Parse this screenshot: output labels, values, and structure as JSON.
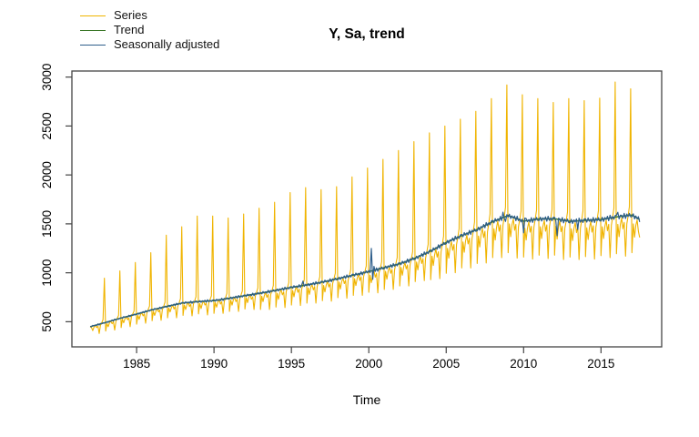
{
  "title": "Y, Sa, trend",
  "chart_data": {
    "type": "line",
    "title": "Y, Sa, trend",
    "xlabel": "Time",
    "ylabel": "",
    "grid": false,
    "legend_position": "top-left-above-plot",
    "frequency": "monthly",
    "x_ticks": [
      1985,
      1990,
      1995,
      2000,
      2005,
      2010,
      2015
    ],
    "y_ticks": [
      500,
      1000,
      1500,
      2000,
      2500,
      3000
    ],
    "x_range": [
      1980.82,
      2018.92
    ],
    "y_range": [
      243,
      3062
    ],
    "legend": [
      {
        "name": "Series",
        "color": "#F0B400"
      },
      {
        "name": "Trend",
        "color": "#3A7728"
      },
      {
        "name": "Seasonally adjusted",
        "color": "#2E5E8A"
      }
    ],
    "axis_color": "#444444",
    "trend": {
      "start_year": 1982,
      "annual_january_values": [
        450,
        492,
        538,
        578,
        622,
        658,
        692,
        706,
        716,
        740,
        766,
        792,
        821,
        851,
        876,
        905,
        940,
        976,
        1012,
        1052,
        1092,
        1150,
        1222,
        1310,
        1380,
        1442,
        1522,
        1585,
        1528,
        1550,
        1552,
        1526,
        1536,
        1545,
        1572,
        1590
      ],
      "end_point": {
        "time": 2017.5,
        "value": 1545
      }
    },
    "monthly": [
      {
        "year": 1982,
        "series": [
          450,
          440,
          410,
          445,
          465,
          440,
          455,
          380,
          465,
          490,
          520,
          945
        ],
        "sa_dev": [
          3,
          -5,
          6,
          -3,
          2,
          -6,
          7,
          -8,
          4,
          -2,
          5,
          -3
        ]
      },
      {
        "year": 1983,
        "series": [
          405,
          480,
          450,
          490,
          505,
          480,
          500,
          415,
          505,
          535,
          565,
          1020
        ],
        "sa_dev": [
          -4,
          5,
          -6,
          3,
          -2,
          6,
          -7,
          8,
          -4,
          2,
          -5,
          3
        ]
      },
      {
        "year": 1984,
        "series": [
          440,
          525,
          490,
          530,
          550,
          520,
          540,
          450,
          550,
          580,
          610,
          1105
        ],
        "sa_dev": [
          4,
          -6,
          7,
          -3,
          2,
          -7,
          8,
          -9,
          5,
          -3,
          6,
          -4
        ]
      },
      {
        "year": 1985,
        "series": [
          475,
          565,
          525,
          570,
          595,
          560,
          580,
          485,
          590,
          625,
          660,
          1205
        ],
        "sa_dev": [
          -5,
          6,
          -7,
          4,
          -2,
          7,
          -8,
          9,
          -5,
          3,
          -6,
          4
        ]
      },
      {
        "year": 1986,
        "series": [
          510,
          605,
          565,
          610,
          635,
          600,
          620,
          515,
          625,
          660,
          700,
          1385
        ],
        "sa_dev": [
          5,
          -7,
          8,
          -4,
          3,
          -8,
          9,
          -10,
          5,
          -3,
          7,
          -5
        ]
      },
      {
        "year": 1987,
        "series": [
          540,
          640,
          600,
          645,
          670,
          630,
          655,
          540,
          660,
          695,
          735,
          1470
        ],
        "sa_dev": [
          -6,
          7,
          -9,
          5,
          -3,
          8,
          -10,
          11,
          -6,
          4,
          -7,
          5
        ]
      },
      {
        "year": 1988,
        "series": [
          565,
          670,
          625,
          675,
          695,
          655,
          680,
          560,
          680,
          715,
          755,
          1580
        ],
        "sa_dev": [
          6,
          -8,
          9,
          -5,
          3,
          -9,
          11,
          -12,
          6,
          -4,
          8,
          -6
        ]
      },
      {
        "year": 1989,
        "series": [
          580,
          685,
          635,
          690,
          710,
          670,
          690,
          570,
          695,
          730,
          765,
          1580
        ],
        "sa_dev": [
          -6,
          8,
          -10,
          5,
          -4,
          9,
          -11,
          12,
          -7,
          4,
          -8,
          6
        ]
      },
      {
        "year": 1990,
        "series": [
          585,
          695,
          650,
          700,
          725,
          680,
          705,
          585,
          710,
          750,
          790,
          1560
        ],
        "sa_dev": [
          7,
          -9,
          10,
          -5,
          4,
          -10,
          12,
          -13,
          7,
          -4,
          9,
          -7
        ]
      },
      {
        "year": 1991,
        "series": [
          605,
          720,
          670,
          725,
          750,
          705,
          730,
          605,
          735,
          775,
          815,
          1600
        ],
        "sa_dev": [
          -7,
          9,
          -11,
          6,
          -4,
          10,
          -12,
          13,
          -8,
          5,
          -9,
          7
        ]
      },
      {
        "year": 1992,
        "series": [
          630,
          745,
          695,
          750,
          775,
          730,
          755,
          625,
          760,
          800,
          845,
          1660
        ],
        "sa_dev": [
          7,
          -10,
          11,
          -6,
          4,
          -11,
          13,
          -14,
          8,
          -5,
          10,
          -7
        ]
      },
      {
        "year": 1993,
        "series": [
          625,
          760,
          705,
          765,
          800,
          750,
          780,
          625,
          780,
          820,
          870,
          1720
        ],
        "sa_dev": [
          8,
          -10,
          12,
          -6,
          4,
          -11,
          14,
          -15,
          8,
          -5,
          10,
          -8
        ]
      },
      {
        "year": 1994,
        "series": [
          650,
          790,
          730,
          795,
          825,
          775,
          805,
          645,
          810,
          850,
          900,
          1820
        ],
        "sa_dev": [
          -8,
          10,
          -12,
          7,
          -5,
          11,
          -14,
          15,
          -9,
          5,
          -11,
          8
        ]
      },
      {
        "year": 1995,
        "series": [
          670,
          820,
          755,
          825,
          855,
          800,
          835,
          665,
          835,
          880,
          930,
          1870
        ],
        "sa_dev": [
          8,
          -11,
          13,
          -7,
          5,
          -12,
          15,
          -16,
          9,
          45,
          -11,
          8
        ]
      },
      {
        "year": 1996,
        "series": [
          690,
          845,
          780,
          850,
          880,
          825,
          860,
          690,
          860,
          905,
          960,
          1850
        ],
        "sa_dev": [
          -9,
          11,
          -13,
          7,
          -5,
          12,
          -15,
          16,
          -9,
          6,
          -12,
          9
        ]
      },
      {
        "year": 1997,
        "series": [
          715,
          870,
          805,
          875,
          910,
          855,
          890,
          710,
          890,
          940,
          995,
          1880
        ],
        "sa_dev": [
          9,
          -12,
          14,
          -7,
          5,
          -13,
          16,
          -17,
          10,
          -6,
          12,
          -9
        ]
      },
      {
        "year": 1998,
        "series": [
          745,
          905,
          835,
          910,
          945,
          890,
          925,
          740,
          925,
          975,
          1035,
          1980
        ],
        "sa_dev": [
          -10,
          12,
          -14,
          8,
          -6,
          13,
          -16,
          17,
          -10,
          6,
          -13,
          10
        ]
      },
      {
        "year": 1999,
        "series": [
          770,
          940,
          870,
          945,
          985,
          920,
          960,
          770,
          960,
          1015,
          1070,
          2070
        ],
        "sa_dev": [
          10,
          -13,
          15,
          -8,
          6,
          -14,
          17,
          -18,
          10,
          -6,
          13,
          -10
        ]
      },
      {
        "year": 2000,
        "series": [
          800,
          975,
          900,
          980,
          1020,
          955,
          995,
          795,
          1000,
          1050,
          1115,
          2160
        ],
        "sa_dev": [
          12,
          -14,
          230,
          -90,
          40,
          -15,
          18,
          -20,
          11,
          -7,
          14,
          -11
        ]
      },
      {
        "year": 2001,
        "series": [
          830,
          1015,
          935,
          1020,
          1060,
          995,
          1035,
          830,
          1035,
          1095,
          1155,
          2250
        ],
        "sa_dev": [
          -11,
          13,
          -16,
          9,
          -6,
          14,
          -18,
          19,
          -11,
          7,
          -14,
          11
        ]
      },
      {
        "year": 2002,
        "series": [
          865,
          1055,
          975,
          1060,
          1105,
          1040,
          1080,
          865,
          1085,
          1145,
          1215,
          2340
        ],
        "sa_dev": [
          11,
          -14,
          17,
          -9,
          6,
          -15,
          19,
          -20,
          12,
          -7,
          15,
          -11
        ]
      },
      {
        "year": 2003,
        "series": [
          910,
          1110,
          1030,
          1120,
          1170,
          1095,
          1145,
          920,
          1150,
          1215,
          1290,
          2430
        ],
        "sa_dev": [
          -12,
          14,
          -17,
          9,
          -7,
          16,
          -19,
          21,
          -12,
          8,
          -15,
          12
        ]
      },
      {
        "year": 2004,
        "series": [
          930,
          1170,
          1075,
          1180,
          1240,
          1160,
          1215,
          940,
          1215,
          1290,
          1375,
          2500
        ],
        "sa_dev": [
          12,
          -15,
          18,
          -10,
          7,
          -16,
          20,
          -22,
          12,
          -8,
          16,
          -12
        ]
      },
      {
        "year": 2005,
        "series": [
          995,
          1250,
          1150,
          1260,
          1320,
          1230,
          1290,
          1000,
          1290,
          1360,
          1450,
          2570
        ],
        "sa_dev": [
          -13,
          15,
          -19,
          10,
          -7,
          17,
          -21,
          23,
          -13,
          8,
          -17,
          13
        ]
      },
      {
        "year": 2006,
        "series": [
          1050,
          1315,
          1210,
          1325,
          1385,
          1295,
          1355,
          1050,
          1350,
          1425,
          1520,
          2650
        ],
        "sa_dev": [
          13,
          -16,
          20,
          -10,
          7,
          -18,
          22,
          -24,
          13,
          -8,
          17,
          -13
        ]
      },
      {
        "year": 2007,
        "series": [
          1095,
          1375,
          1265,
          1390,
          1455,
          1360,
          1425,
          1100,
          1420,
          1500,
          1600,
          2780
        ],
        "sa_dev": [
          -14,
          17,
          -20,
          11,
          -8,
          18,
          -22,
          24,
          -14,
          9,
          -18,
          14
        ]
      },
      {
        "year": 2008,
        "series": [
          1155,
          1450,
          1335,
          1460,
          1530,
          1425,
          1490,
          1155,
          1485,
          1570,
          1670,
          2920
        ],
        "sa_dev": [
          14,
          -17,
          21,
          -11,
          8,
          -19,
          23,
          -25,
          55,
          -9,
          -50,
          14
        ]
      },
      {
        "year": 2009,
        "series": [
          1205,
          1500,
          1370,
          1490,
          1550,
          1435,
          1495,
          1150,
          1470,
          1540,
          1630,
          2820
        ],
        "sa_dev": [
          -15,
          18,
          -21,
          11,
          -8,
          19,
          -24,
          26,
          -14,
          9,
          -18,
          15
        ]
      },
      {
        "year": 2010,
        "series": [
          1160,
          1455,
          1335,
          1455,
          1520,
          1415,
          1475,
          1140,
          1465,
          1545,
          1640,
          2780
        ],
        "sa_dev": [
          -120,
          30,
          22,
          -11,
          8,
          -19,
          24,
          -26,
          14,
          -9,
          19,
          -14
        ]
      },
      {
        "year": 2011,
        "series": [
          1180,
          1470,
          1350,
          1475,
          1535,
          1425,
          1490,
          1145,
          1470,
          1550,
          1645,
          2740
        ],
        "sa_dev": [
          -15,
          18,
          -22,
          12,
          -8,
          20,
          -24,
          26,
          -15,
          9,
          -19,
          15
        ]
      },
      {
        "year": 2012,
        "series": [
          1180,
          1475,
          1345,
          1470,
          1530,
          1420,
          1475,
          1135,
          1455,
          1530,
          1620,
          2780
        ],
        "sa_dev": [
          15,
          -19,
          -170,
          12,
          8,
          -20,
          25,
          -27,
          15,
          -9,
          19,
          -15
        ]
      },
      {
        "year": 2013,
        "series": [
          1160,
          1450,
          1330,
          1455,
          1515,
          1410,
          1470,
          1135,
          1455,
          1535,
          1630,
          2760
        ],
        "sa_dev": [
          -16,
          19,
          -23,
          12,
          -9,
          20,
          -90,
          27,
          -15,
          10,
          -20,
          15
        ]
      },
      {
        "year": 2014,
        "series": [
          1165,
          1460,
          1340,
          1460,
          1525,
          1415,
          1480,
          1140,
          1465,
          1545,
          1635,
          2785
        ],
        "sa_dev": [
          16,
          -19,
          23,
          -12,
          9,
          -21,
          25,
          -27,
          15,
          -10,
          20,
          -15
        ]
      },
      {
        "year": 2015,
        "series": [
          1175,
          1470,
          1350,
          1475,
          1540,
          1430,
          1495,
          1155,
          1485,
          1565,
          1660,
          2950
        ],
        "sa_dev": [
          -16,
          20,
          -24,
          13,
          -9,
          21,
          -26,
          28,
          -16,
          10,
          -20,
          16
        ]
      },
      {
        "year": 2016,
        "series": [
          1195,
          1495,
          1370,
          1495,
          1560,
          1450,
          1515,
          1170,
          1500,
          1580,
          1675,
          2880
        ],
        "sa_dev": [
          16,
          45,
          -24,
          13,
          9,
          -21,
          26,
          -28,
          16,
          -10,
          20,
          -16
        ]
      },
      {
        "year": 2017,
        "series": [
          1205,
          1500,
          1365,
          1485,
          1540,
          1425,
          1360
        ],
        "sa_dev": [
          -17,
          20,
          -24,
          13,
          -9,
          21,
          -26
        ]
      }
    ]
  }
}
